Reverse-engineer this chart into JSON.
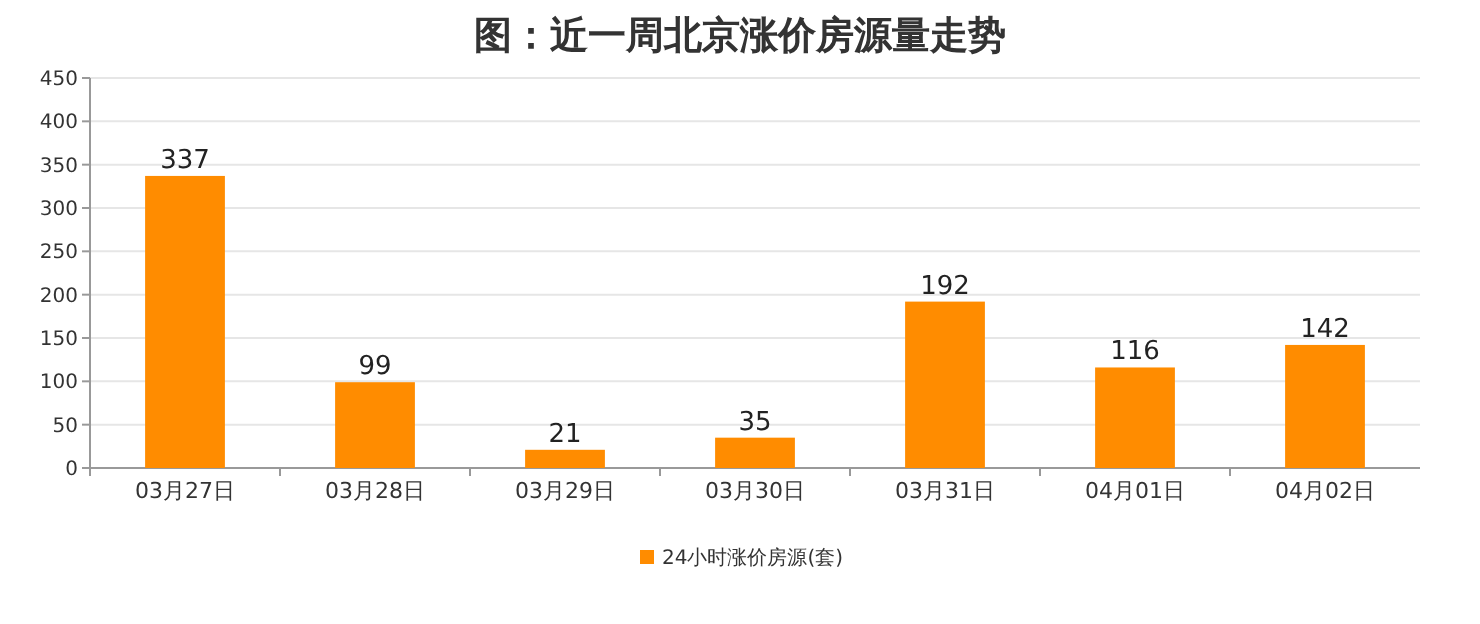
{
  "chart_data": {
    "type": "bar",
    "title": "图：近一周北京涨价房源量走势",
    "categories": [
      "03月27日",
      "03月28日",
      "03月29日",
      "03月30日",
      "03月31日",
      "04月01日",
      "04月02日"
    ],
    "series": [
      {
        "name": "24小时涨价房源(套)",
        "color": "#ff8c00",
        "values": [
          337,
          99,
          21,
          35,
          192,
          116,
          142
        ]
      }
    ],
    "ylim": [
      0,
      450
    ],
    "yticks": [
      0,
      50,
      100,
      150,
      200,
      250,
      300,
      350,
      400,
      450
    ],
    "grid": "y",
    "legend": "bottom",
    "data_labels": true
  }
}
